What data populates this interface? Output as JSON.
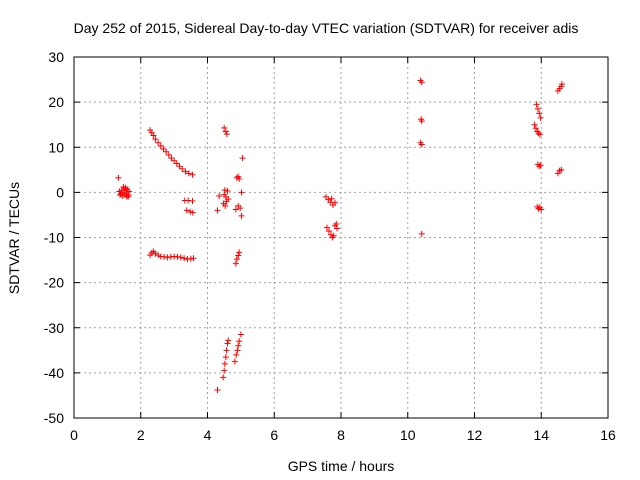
{
  "chart_data": {
    "type": "scatter",
    "title": "Day 252 of 2015, Sidereal Day-to-day VTEC variation (SDTVAR) for receiver adis",
    "xlabel": "GPS time / hours",
    "ylabel": "SDTVAR / TECUs",
    "xlim": [
      0,
      16
    ],
    "ylim": [
      -50,
      30
    ],
    "xticks": [
      0,
      2,
      4,
      6,
      8,
      10,
      12,
      14,
      16
    ],
    "yticks": [
      -50,
      -40,
      -30,
      -20,
      -10,
      0,
      10,
      20,
      30
    ],
    "grid": true,
    "marker": "+",
    "color": "#ff0000",
    "series": [
      {
        "name": "SDTVAR",
        "points": [
          [
            1.33,
            3.2
          ],
          [
            1.36,
            0.2
          ],
          [
            1.4,
            -0.3
          ],
          [
            1.43,
            0.5
          ],
          [
            1.46,
            -0.8
          ],
          [
            1.5,
            0.4
          ],
          [
            1.52,
            -0.5
          ],
          [
            1.55,
            1.0
          ],
          [
            1.57,
            -0.2
          ],
          [
            1.6,
            0.6
          ],
          [
            1.62,
            -1.0
          ],
          [
            1.65,
            0.2
          ],
          [
            1.48,
            1.2
          ],
          [
            1.58,
            -0.9
          ],
          [
            1.44,
            0.0
          ],
          [
            1.54,
            0.9
          ],
          [
            1.64,
            -0.6
          ],
          [
            1.38,
            -0.6
          ],
          [
            2.28,
            13.8
          ],
          [
            2.33,
            13.2
          ],
          [
            2.38,
            12.6
          ],
          [
            2.44,
            11.8
          ],
          [
            2.52,
            11.0
          ],
          [
            2.6,
            10.3
          ],
          [
            2.68,
            9.6
          ],
          [
            2.76,
            9.0
          ],
          [
            2.84,
            8.3
          ],
          [
            2.92,
            7.6
          ],
          [
            3.0,
            7.0
          ],
          [
            3.08,
            6.4
          ],
          [
            3.16,
            5.8
          ],
          [
            3.24,
            5.2
          ],
          [
            3.34,
            4.6
          ],
          [
            3.44,
            4.2
          ],
          [
            3.55,
            3.9
          ],
          [
            2.28,
            -13.9
          ],
          [
            2.33,
            -13.4
          ],
          [
            2.38,
            -13.1
          ],
          [
            2.44,
            -13.6
          ],
          [
            2.52,
            -13.9
          ],
          [
            2.6,
            -14.2
          ],
          [
            2.7,
            -14.3
          ],
          [
            2.8,
            -14.4
          ],
          [
            2.9,
            -14.3
          ],
          [
            3.0,
            -14.2
          ],
          [
            3.1,
            -14.3
          ],
          [
            3.2,
            -14.4
          ],
          [
            3.3,
            -14.6
          ],
          [
            3.4,
            -14.8
          ],
          [
            3.5,
            -14.7
          ],
          [
            3.58,
            -14.6
          ],
          [
            3.32,
            -1.8
          ],
          [
            3.42,
            -1.8
          ],
          [
            3.55,
            -1.9
          ],
          [
            3.38,
            -4.0
          ],
          [
            3.48,
            -4.3
          ],
          [
            3.56,
            -4.5
          ],
          [
            4.3,
            -43.8
          ],
          [
            4.47,
            -41.0
          ],
          [
            4.5,
            -39.5
          ],
          [
            4.52,
            -38.0
          ],
          [
            4.55,
            -36.5
          ],
          [
            4.57,
            -35.0
          ],
          [
            4.6,
            -33.5
          ],
          [
            4.62,
            -32.8
          ],
          [
            4.3,
            -4.0
          ],
          [
            4.35,
            -0.8
          ],
          [
            4.5,
            -0.5
          ],
          [
            4.52,
            0.5
          ],
          [
            4.55,
            -1.0
          ],
          [
            4.57,
            -2.0
          ],
          [
            4.6,
            0.3
          ],
          [
            4.48,
            -2.5
          ],
          [
            4.53,
            -3.0
          ],
          [
            4.62,
            -1.5
          ],
          [
            4.5,
            14.3
          ],
          [
            4.55,
            13.5
          ],
          [
            4.58,
            12.9
          ],
          [
            4.82,
            -37.5
          ],
          [
            4.86,
            -36.0
          ],
          [
            4.9,
            -35.0
          ],
          [
            4.92,
            -34.0
          ],
          [
            4.95,
            -33.0
          ],
          [
            5.0,
            -31.5
          ],
          [
            4.85,
            -15.8
          ],
          [
            4.88,
            -14.8
          ],
          [
            4.92,
            -14.0
          ],
          [
            4.95,
            -13.3
          ],
          [
            4.85,
            -3.8
          ],
          [
            4.92,
            -3.0
          ],
          [
            4.98,
            -3.5
          ],
          [
            5.02,
            -5.2
          ],
          [
            4.88,
            3.2
          ],
          [
            4.92,
            3.5
          ],
          [
            4.95,
            3.0
          ],
          [
            5.02,
            0.0
          ],
          [
            5.05,
            7.6
          ],
          [
            7.55,
            -1.0
          ],
          [
            7.62,
            -1.6
          ],
          [
            7.68,
            -2.2
          ],
          [
            7.72,
            -1.4
          ],
          [
            7.76,
            -2.8
          ],
          [
            7.82,
            -2.3
          ],
          [
            7.58,
            -7.8
          ],
          [
            7.64,
            -8.6
          ],
          [
            7.7,
            -9.4
          ],
          [
            7.74,
            -10.0
          ],
          [
            7.78,
            -9.6
          ],
          [
            7.82,
            -7.4
          ],
          [
            7.86,
            -7.0
          ],
          [
            7.88,
            -8.0
          ],
          [
            10.38,
            24.8
          ],
          [
            10.42,
            24.4
          ],
          [
            10.4,
            16.2
          ],
          [
            10.42,
            15.8
          ],
          [
            10.38,
            11.0
          ],
          [
            10.42,
            10.6
          ],
          [
            10.42,
            -9.2
          ],
          [
            13.8,
            15.0
          ],
          [
            13.84,
            14.2
          ],
          [
            13.88,
            13.5
          ],
          [
            13.92,
            13.1
          ],
          [
            13.96,
            12.8
          ],
          [
            13.86,
            19.5
          ],
          [
            13.9,
            18.5
          ],
          [
            13.94,
            17.5
          ],
          [
            13.98,
            16.5
          ],
          [
            13.9,
            6.2
          ],
          [
            13.94,
            5.8
          ],
          [
            13.98,
            6.0
          ],
          [
            13.88,
            -3.2
          ],
          [
            13.92,
            -3.6
          ],
          [
            13.96,
            -3.3
          ],
          [
            14.0,
            -3.8
          ],
          [
            14.5,
            4.2
          ],
          [
            14.55,
            4.8
          ],
          [
            14.6,
            5.0
          ],
          [
            14.5,
            22.5
          ],
          [
            14.55,
            23.0
          ],
          [
            14.6,
            23.5
          ],
          [
            14.62,
            24.0
          ]
        ]
      }
    ]
  }
}
